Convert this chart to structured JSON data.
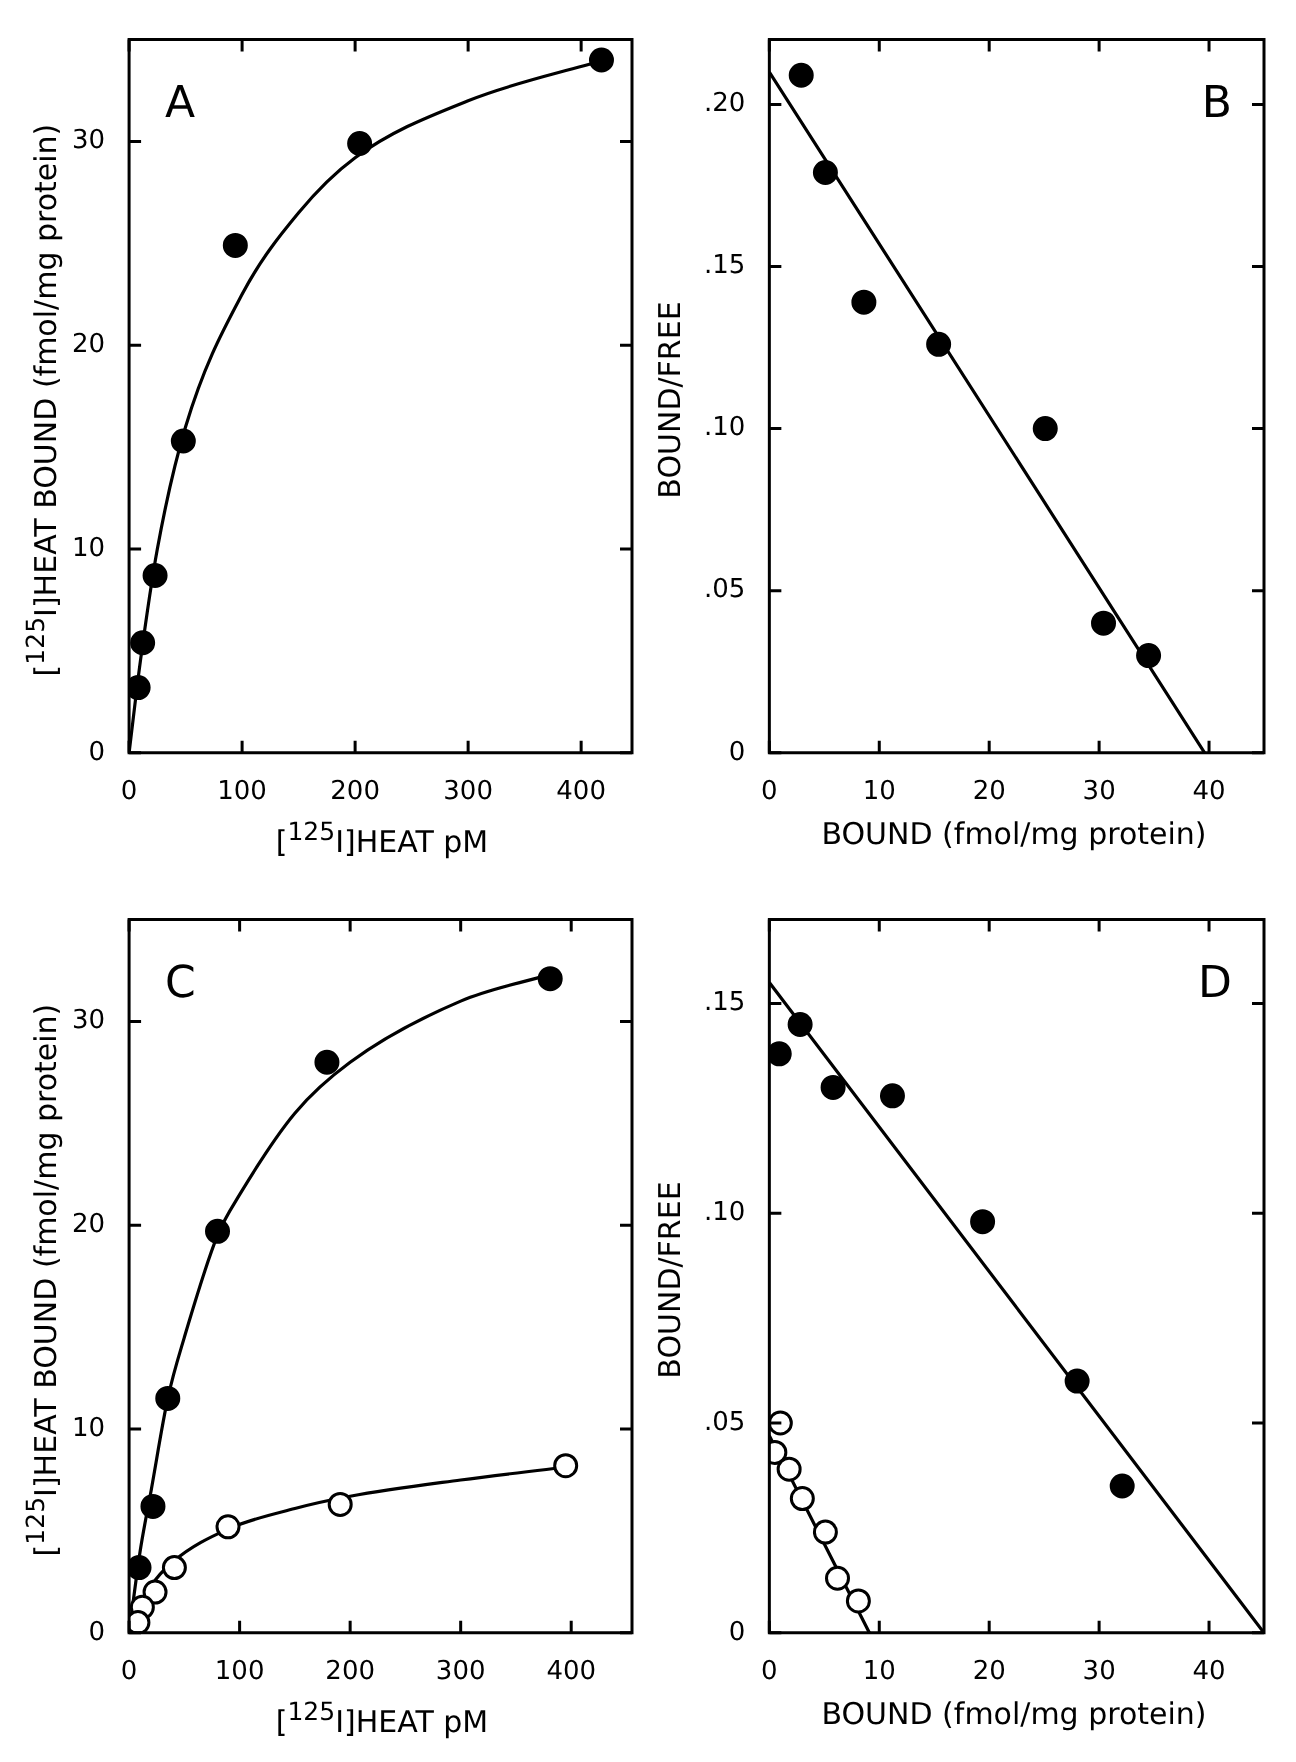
{
  "chart_data": [
    {
      "type": "scatter",
      "xlabel": "[$^{125}$I]HEAT pM",
      "ylabel": "[$^{125}$I]HEAT BOUND (fmol/mg protein)",
      "annotations": [
        "A"
      ],
      "xlim": [
        0,
        445
      ],
      "xticks": [
        0,
        100,
        200,
        300,
        400
      ],
      "ylim": [
        0,
        35
      ],
      "yticks": [
        0,
        10,
        20,
        30
      ],
      "marker": "circle",
      "series": [
        {
          "color": "#000000",
          "x": [
            418,
            204,
            94,
            48,
            23,
            12,
            8
          ],
          "values": [
            34.0,
            29.9,
            24.9,
            15.3,
            8.7,
            5.4,
            3.2
          ]
        },
        {
          "type": "line",
          "marker": "none",
          "color": "#000000",
          "x": [
            0,
            10,
            25,
            50,
            100,
            150,
            200,
            300,
            420
          ],
          "values": [
            0,
            4.5,
            10,
            16,
            22.5,
            26.5,
            29.2,
            32,
            34
          ]
        }
      ]
    },
    {
      "type": "scatter",
      "xlabel": "BOUND (fmol/mg protein)",
      "ylabel": "BOUND/FREE",
      "annotations": [
        "B"
      ],
      "xlim": [
        0,
        45
      ],
      "xticks": [
        0,
        10,
        20,
        30,
        40
      ],
      "ylim": [
        0,
        0.22
      ],
      "yticks": [
        0,
        {
          "value": 0.05,
          "label": ".05"
        },
        {
          "value": 0.1,
          "label": ".10"
        },
        {
          "value": 0.15,
          "label": ".15"
        },
        {
          "value": 0.2,
          "label": ".20"
        }
      ],
      "marker": "circle",
      "series": [
        {
          "color": "#000000",
          "x": [
            2.9,
            5.1,
            8.6,
            15.4,
            25.1,
            30.4,
            34.5
          ],
          "values": [
            0.209,
            0.179,
            0.139,
            0.126,
            0.1,
            0.04,
            0.03
          ]
        },
        {
          "type": "line",
          "marker": "none",
          "color": "#000000",
          "x": [
            0,
            39.6
          ],
          "values": [
            0.21,
            0
          ]
        }
      ]
    },
    {
      "type": "scatter",
      "xlabel": "[$^{125}$I]HEAT pM",
      "ylabel": "[$^{125}$I]HEAT BOUND (fmol/mg protein)",
      "annotations": [
        "C"
      ],
      "xlim": [
        0,
        455
      ],
      "xticks": [
        0,
        100,
        200,
        300,
        400
      ],
      "ylim": [
        0,
        35
      ],
      "yticks": [
        0,
        10,
        20,
        30
      ],
      "marker": "circle",
      "series": [
        {
          "color": "#000000",
          "x": [
            381,
            179,
            80,
            35,
            21.6,
            9
          ],
          "values": [
            32.1,
            28.0,
            19.7,
            11.5,
            6.2,
            3.2
          ]
        },
        {
          "color": "#ffffff",
          "x": [
            395,
            191,
            89.5,
            41,
            23.5,
            12,
            8
          ],
          "values": [
            8.2,
            6.3,
            5.2,
            3.2,
            2.0,
            1.25,
            0.5
          ]
        },
        {
          "type": "line",
          "marker": "none",
          "color": "#000000",
          "x": [
            0,
            10,
            20,
            35,
            50,
            80,
            100,
            150,
            200,
            300,
            380
          ],
          "values": [
            0,
            4,
            7,
            11.5,
            14.5,
            19.5,
            21.5,
            25.5,
            28,
            31,
            32.3
          ]
        },
        {
          "type": "line",
          "marker": "none",
          "color": "#000000",
          "x": [
            0,
            20,
            40,
            90,
            150,
            200,
            300,
            390
          ],
          "values": [
            0,
            2.3,
            3.5,
            5.1,
            6.1,
            6.7,
            7.5,
            8.1
          ]
        }
      ]
    },
    {
      "type": "scatter",
      "xlabel": "BOUND (fmol/mg protein)",
      "ylabel": "BOUND/FREE",
      "annotations": [
        "D"
      ],
      "xlim": [
        0,
        45
      ],
      "xticks": [
        0,
        10,
        20,
        30,
        40
      ],
      "ylim": [
        0,
        0.17
      ],
      "yticks": [
        0,
        {
          "value": 0.05,
          "label": ".05"
        },
        {
          "value": 0.1,
          "label": ".10"
        },
        {
          "value": 0.15,
          "label": ".15"
        }
      ],
      "marker": "circle",
      "series": [
        {
          "color": "#000000",
          "x": [
            0.9,
            2.8,
            5.8,
            11.2,
            19.4,
            28.0,
            32.1
          ],
          "values": [
            0.138,
            0.145,
            0.13,
            0.128,
            0.098,
            0.06,
            0.035
          ]
        },
        {
          "color": "#ffffff",
          "x": [
            1.0,
            0.5,
            1.8,
            3.0,
            5.1,
            6.2,
            8.1
          ],
          "values": [
            0.05,
            0.043,
            0.039,
            0.032,
            0.024,
            0.013,
            0.0076
          ]
        },
        {
          "type": "line",
          "marker": "none",
          "color": "#000000",
          "x": [
            0,
            45
          ],
          "values": [
            0.155,
            0
          ]
        },
        {
          "type": "line",
          "marker": "none",
          "color": "#000000",
          "x": [
            0,
            9.1
          ],
          "values": [
            0.047,
            0
          ]
        }
      ]
    }
  ]
}
